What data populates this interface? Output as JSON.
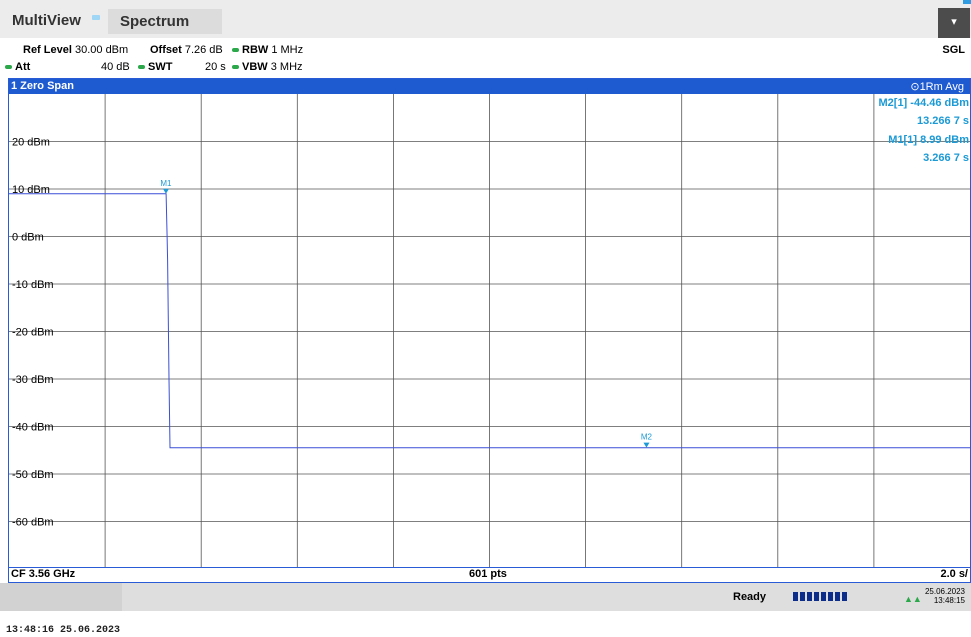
{
  "tabs": {
    "multiview": "MultiView",
    "spectrum": "Spectrum"
  },
  "menu_label": "▾",
  "params": {
    "ref_level_label": "Ref Level",
    "ref_level_value": "30.00 dBm",
    "offset_label": "Offset",
    "offset_value": "7.26 dB",
    "rbw_label": "RBW",
    "rbw_value": "1 MHz",
    "att_label": "Att",
    "att_value": "40 dB",
    "swt_label": "SWT",
    "swt_value": "20 s",
    "vbw_label": "VBW",
    "vbw_value": "3 MHz",
    "mode": "SGL"
  },
  "window": {
    "title": "1 Zero Span",
    "trace": "1Rm Avg"
  },
  "markers": [
    {
      "name": "M2[1]",
      "level": "-44.46 dBm",
      "time": "13.266 7 s"
    },
    {
      "name": "M1[1]",
      "level": "8.99 dBm",
      "time": "3.266 7 s"
    }
  ],
  "chart_data": {
    "type": "line",
    "y_unit": "dBm",
    "y_tick_labels": [
      "20 dBm",
      "10 dBm",
      "0 dBm",
      "-10 dBm",
      "-20 dBm",
      "-30 dBm",
      "-40 dBm",
      "-50 dBm",
      "-60 dBm"
    ],
    "y_ticks": [
      20,
      10,
      0,
      -10,
      -20,
      -30,
      -40,
      -50,
      -60
    ],
    "ylim": [
      -70,
      30
    ],
    "xlim": [
      0,
      20
    ],
    "x_unit": "s",
    "grid": true,
    "series": [
      {
        "color": "#3a4fd6",
        "x": [
          0,
          3.27,
          3.29,
          3.3,
          3.33,
          3.35,
          20
        ],
        "y": [
          9.0,
          9.0,
          0,
          -5,
          -30,
          -44.46,
          -44.46
        ]
      }
    ],
    "marker_points": [
      {
        "label": "M1",
        "x": 3.2667,
        "y": 8.99
      },
      {
        "label": "M2",
        "x": 13.2667,
        "y": -44.46
      }
    ]
  },
  "footer": {
    "center_freq": "CF 3.56 GHz",
    "points": "601 pts",
    "span": "2.0 s/"
  },
  "status": {
    "ready": "Ready",
    "date": "25.06.2023",
    "time": "13:48:15"
  },
  "timestamp": "13:48:16  25.06.2023"
}
